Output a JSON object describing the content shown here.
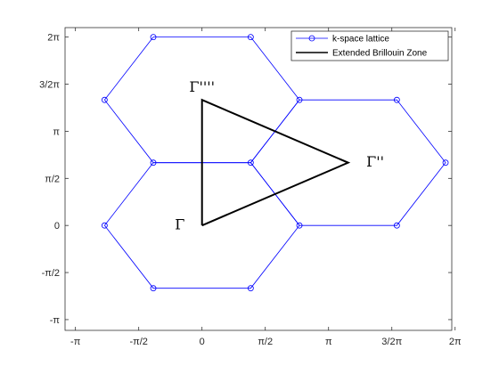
{
  "chart_data": {
    "type": "line",
    "title": "",
    "xlabel": "",
    "ylabel": "",
    "xlim": [
      -3.4,
      6.2
    ],
    "ylim": [
      -3.5,
      6.6
    ],
    "xticks": [
      {
        "value": -3.14159,
        "label": "-π"
      },
      {
        "value": -1.5708,
        "label": "-π/2"
      },
      {
        "value": 0,
        "label": "0"
      },
      {
        "value": 1.5708,
        "label": "π/2"
      },
      {
        "value": 3.14159,
        "label": "π"
      },
      {
        "value": 4.71239,
        "label": "3/2π"
      },
      {
        "value": 6.28319,
        "label": "2π"
      }
    ],
    "yticks": [
      {
        "value": -3.14159,
        "label": "-π"
      },
      {
        "value": -1.5708,
        "label": "-π/2"
      },
      {
        "value": 0,
        "label": "0"
      },
      {
        "value": 1.5708,
        "label": "π/2"
      },
      {
        "value": 3.14159,
        "label": "π"
      },
      {
        "value": 4.71239,
        "label": "3/2π"
      },
      {
        "value": 6.28319,
        "label": "2π"
      }
    ],
    "grid": false,
    "legend": {
      "placement": "top-right",
      "entries": [
        "k-space lattice",
        "Extended Brillouin Zone"
      ]
    },
    "series": [
      {
        "name": "k-space lattice",
        "color": "#0000ff",
        "marker": "circle",
        "segments": [
          [
            [
              -1.2092,
              2.0944
            ],
            [
              -2.4184,
              0
            ],
            [
              -1.2092,
              -2.0944
            ],
            [
              1.2092,
              -2.0944
            ],
            [
              2.4184,
              0
            ],
            [
              1.2092,
              2.0944
            ],
            [
              -1.2092,
              2.0944
            ]
          ],
          [
            [
              -1.2092,
              6.2832
            ],
            [
              -2.4184,
              4.1888
            ],
            [
              -1.2092,
              2.0944
            ],
            [
              1.2092,
              2.0944
            ],
            [
              2.4184,
              4.1888
            ],
            [
              1.2092,
              6.2832
            ],
            [
              -1.2092,
              6.2832
            ]
          ],
          [
            [
              2.4184,
              4.1888
            ],
            [
              1.2092,
              2.0944
            ],
            [
              2.4184,
              0
            ],
            [
              4.8368,
              0
            ],
            [
              6.046,
              2.0944
            ],
            [
              4.8368,
              4.1888
            ],
            [
              2.4184,
              4.1888
            ]
          ]
        ]
      },
      {
        "name": "Extended Brillouin Zone",
        "color": "#000000",
        "marker": "none",
        "segments": [
          [
            [
              0,
              0
            ],
            [
              3.6276,
              2.0944
            ],
            [
              0,
              4.1888
            ],
            [
              0,
              0
            ]
          ]
        ]
      }
    ],
    "annotations": [
      {
        "text": "Γ",
        "x": -0.55,
        "y": 0
      },
      {
        "text": "Γ''",
        "x": 4.3,
        "y": 2.0944
      },
      {
        "text": "Γ''''",
        "x": 0,
        "y": 4.6
      }
    ]
  },
  "colors": {
    "lattice": "#0000ff",
    "zone": "#000000",
    "axis": "#262626"
  }
}
